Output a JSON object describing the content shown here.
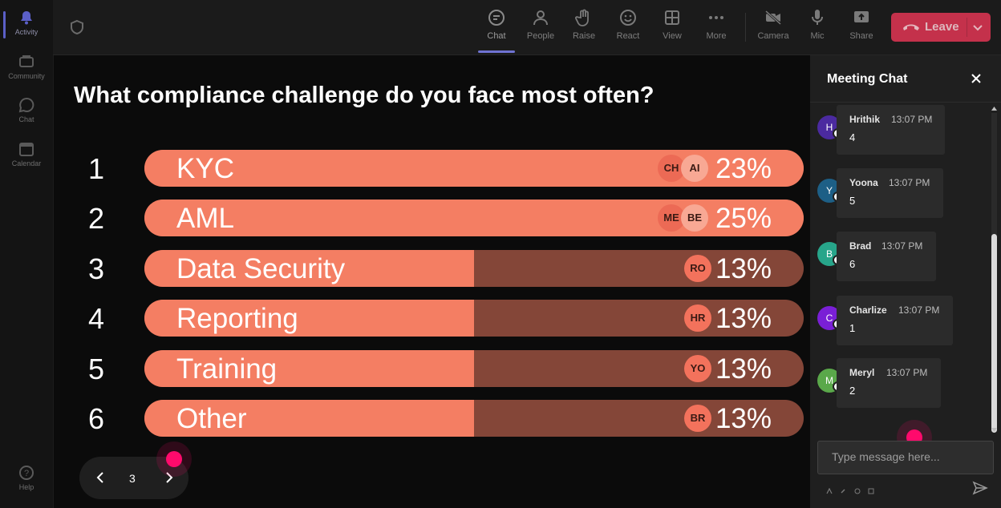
{
  "rail": {
    "items": [
      {
        "label": "Activity",
        "icon": "bell-icon",
        "active": true
      },
      {
        "label": "Community",
        "icon": "community-icon"
      },
      {
        "label": "Chat",
        "icon": "chat-icon"
      },
      {
        "label": "Calendar",
        "icon": "calendar-icon"
      }
    ],
    "help": {
      "label": "Help",
      "icon": "help-icon"
    }
  },
  "toolbar": {
    "buttons": [
      {
        "label": "Chat",
        "icon": "chat-bubble-icon",
        "active": true
      },
      {
        "label": "People",
        "icon": "people-icon"
      },
      {
        "label": "Raise",
        "icon": "raise-hand-icon"
      },
      {
        "label": "React",
        "icon": "smile-icon"
      },
      {
        "label": "View",
        "icon": "grid-icon"
      },
      {
        "label": "More",
        "icon": "more-icon"
      },
      {
        "label": "Camera",
        "icon": "camera-off-icon"
      },
      {
        "label": "Mic",
        "icon": "mic-icon"
      },
      {
        "label": "Share",
        "icon": "share-icon"
      }
    ],
    "leave_label": "Leave"
  },
  "poll": {
    "question": "What compliance challenge do you face most often?",
    "options": [
      {
        "num": "1",
        "label": "KYC",
        "percent": 23,
        "pct_label": "23%",
        "fill": 1.0,
        "avatars": [
          "CH",
          "AI"
        ]
      },
      {
        "num": "2",
        "label": "AML",
        "percent": 25,
        "pct_label": "25%",
        "fill": 1.0,
        "avatars": [
          "ME",
          "BE"
        ]
      },
      {
        "num": "3",
        "label": "Data Security",
        "percent": 13,
        "pct_label": "13%",
        "fill": 0.5,
        "avatars": [
          "RO"
        ]
      },
      {
        "num": "4",
        "label": "Reporting",
        "percent": 13,
        "pct_label": "13%",
        "fill": 0.5,
        "avatars": [
          "HR"
        ]
      },
      {
        "num": "5",
        "label": "Training",
        "percent": 13,
        "pct_label": "13%",
        "fill": 0.5,
        "avatars": [
          "YO"
        ]
      },
      {
        "num": "6",
        "label": "Other",
        "percent": 13,
        "pct_label": "13%",
        "fill": 0.5,
        "avatars": [
          "BR"
        ]
      }
    ],
    "page": "3"
  },
  "chat": {
    "title": "Meeting Chat",
    "messages": [
      {
        "initial": "H",
        "name": "Hrithik",
        "time": "13:07 PM",
        "text": "4",
        "color": "#4b2aa0"
      },
      {
        "initial": "Y",
        "name": "Yoona",
        "time": "13:07 PM",
        "text": "5",
        "color": "#1d5f86"
      },
      {
        "initial": "B",
        "name": "Brad",
        "time": "13:07 PM",
        "text": "6",
        "color": "#27a58a"
      },
      {
        "initial": "C",
        "name": "Charlize",
        "time": "13:07 PM",
        "text": "1",
        "color": "#7a1fd6"
      },
      {
        "initial": "M",
        "name": "Meryl",
        "time": "13:07 PM",
        "text": "2",
        "color": "#5aa84a"
      }
    ],
    "input_placeholder": "Type message here..."
  }
}
